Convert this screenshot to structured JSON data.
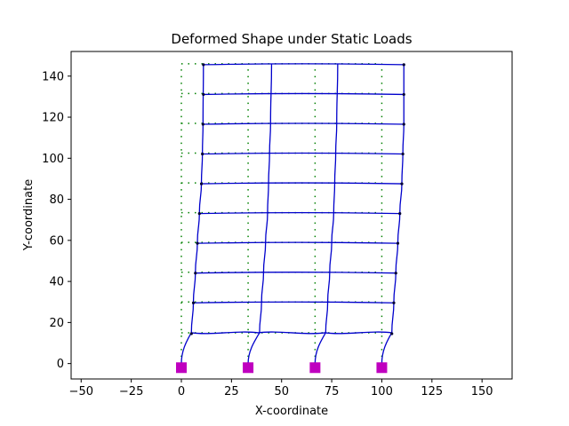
{
  "chart_data": {
    "type": "line",
    "title": "Deformed Shape under Static Loads",
    "xlabel": "X-coordinate",
    "ylabel": "Y-coordinate",
    "xlim": [
      -55,
      165
    ],
    "ylim": [
      -7.5,
      152
    ],
    "xticks": [
      -50,
      -25,
      0,
      25,
      50,
      75,
      100,
      125,
      150
    ],
    "yticks": [
      0,
      20,
      40,
      60,
      80,
      100,
      120,
      140
    ],
    "grid": false,
    "legend": "none",
    "colors": {
      "original": "#008000",
      "deformed": "#0000cc",
      "support": "#bf00bf"
    },
    "column_lines_x": [
      0,
      33.3,
      66.7,
      100
    ],
    "floor_levels_y": [
      0,
      15,
      30,
      44.5,
      59,
      73.5,
      88,
      102.5,
      117,
      131.5,
      146
    ],
    "original_shape_style": "dotted",
    "deformed_columns": [
      {
        "x": [
          0,
          5,
          6,
          7,
          8,
          9,
          10,
          10.5,
          10.8,
          11
        ],
        "y": [
          0,
          15,
          30,
          44.5,
          59,
          73.5,
          88,
          102.5,
          117,
          146
        ]
      },
      {
        "x": [
          33.3,
          39,
          40,
          41,
          42,
          43,
          43.5,
          44,
          44.5,
          45
        ],
        "y": [
          0,
          15,
          30,
          44.5,
          59,
          73.5,
          88,
          102.5,
          117,
          146
        ]
      },
      {
        "x": [
          66.7,
          72,
          73,
          74,
          75,
          76,
          76.5,
          77,
          77.5,
          78
        ],
        "y": [
          0,
          15,
          30,
          44.5,
          59,
          73.5,
          88,
          102.5,
          117,
          146
        ]
      },
      {
        "x": [
          100,
          105,
          106,
          107,
          108,
          109,
          110,
          110.5,
          111,
          111
        ],
        "y": [
          0,
          15,
          30,
          44.5,
          59,
          73.5,
          88,
          102.5,
          117,
          146
        ]
      }
    ],
    "deformed_floors": [
      {
        "y": 15,
        "x_start": 5,
        "x_end": 105,
        "wave": true
      },
      {
        "y": 30,
        "x_start": 6,
        "x_end": 106
      },
      {
        "y": 44.5,
        "x_start": 7,
        "x_end": 107
      },
      {
        "y": 59,
        "x_start": 8,
        "x_end": 108
      },
      {
        "y": 73.5,
        "x_start": 9,
        "x_end": 109
      },
      {
        "y": 88,
        "x_start": 10,
        "x_end": 110
      },
      {
        "y": 102.5,
        "x_start": 10.5,
        "x_end": 110.5
      },
      {
        "y": 117,
        "x_start": 10.8,
        "x_end": 111
      },
      {
        "y": 131.5,
        "x_start": 11,
        "x_end": 111
      },
      {
        "y": 146,
        "x_start": 11,
        "x_end": 111
      }
    ],
    "supports": [
      {
        "x": 0,
        "y": -2
      },
      {
        "x": 33.3,
        "y": -2
      },
      {
        "x": 66.7,
        "y": -2
      },
      {
        "x": 100,
        "y": -2
      }
    ]
  }
}
